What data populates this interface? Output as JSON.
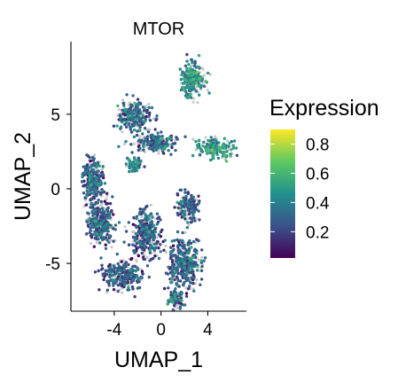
{
  "chart_data": {
    "type": "scatter",
    "title": "MTOR",
    "xlabel": "UMAP_1",
    "ylabel": "UMAP_2",
    "xlim": [
      -7.7,
      7.3
    ],
    "ylim": [
      -8.2,
      9.8
    ],
    "xticks": [
      -4,
      0,
      4
    ],
    "yticks": [
      -5,
      0,
      5
    ],
    "grid": false,
    "legend": {
      "title": "Expression",
      "placement": "right",
      "type": "colorbar",
      "ticks": [
        0.2,
        0.4,
        0.6,
        0.8
      ],
      "range": [
        0.02,
        0.9
      ],
      "colormap": "viridis",
      "colormap_stops": [
        "#440154",
        "#3b528b",
        "#21918c",
        "#5ec962",
        "#fde725"
      ]
    },
    "zero_expression_color": "#c8c8c8",
    "clusters": [
      {
        "name": "top-peak",
        "center": [
          2.7,
          7.3
        ],
        "spread": [
          1.0,
          1.1
        ],
        "weight": 0.09,
        "expr_mean": 0.42
      },
      {
        "name": "upper-left-arm",
        "center": [
          -2.3,
          4.9
        ],
        "spread": [
          1.4,
          0.9
        ],
        "weight": 0.08,
        "expr_mean": 0.28
      },
      {
        "name": "upper-band",
        "center": [
          -0.6,
          3.1
        ],
        "spread": [
          1.7,
          0.6
        ],
        "weight": 0.07,
        "expr_mean": 0.26
      },
      {
        "name": "right-arm",
        "center": [
          4.6,
          2.7
        ],
        "spread": [
          1.4,
          0.6
        ],
        "weight": 0.06,
        "expr_mean": 0.45
      },
      {
        "name": "left-upper",
        "center": [
          -5.8,
          0.6
        ],
        "spread": [
          0.8,
          1.2
        ],
        "weight": 0.1,
        "expr_mean": 0.25
      },
      {
        "name": "left-middle",
        "center": [
          -5.2,
          -2.2
        ],
        "spread": [
          1.0,
          1.3
        ],
        "weight": 0.12,
        "expr_mean": 0.25
      },
      {
        "name": "center-lower",
        "center": [
          -1.3,
          -3.0
        ],
        "spread": [
          1.2,
          1.4
        ],
        "weight": 0.12,
        "expr_mean": 0.24
      },
      {
        "name": "bottom-left",
        "center": [
          -3.3,
          -5.8
        ],
        "spread": [
          1.5,
          0.9
        ],
        "weight": 0.1,
        "expr_mean": 0.22
      },
      {
        "name": "bottom-right",
        "center": [
          2.0,
          -5.0
        ],
        "spread": [
          1.3,
          1.3
        ],
        "weight": 0.14,
        "expr_mean": 0.26
      },
      {
        "name": "right-lower",
        "center": [
          2.4,
          -1.2
        ],
        "spread": [
          0.8,
          1.0
        ],
        "weight": 0.06,
        "expr_mean": 0.24
      },
      {
        "name": "lower-tail",
        "center": [
          1.3,
          -7.4
        ],
        "spread": [
          0.6,
          0.5
        ],
        "weight": 0.03,
        "expr_mean": 0.28
      },
      {
        "name": "mid-stem",
        "center": [
          -2.3,
          1.6
        ],
        "spread": [
          0.6,
          0.4
        ],
        "weight": 0.03,
        "expr_mean": 0.35
      }
    ]
  }
}
